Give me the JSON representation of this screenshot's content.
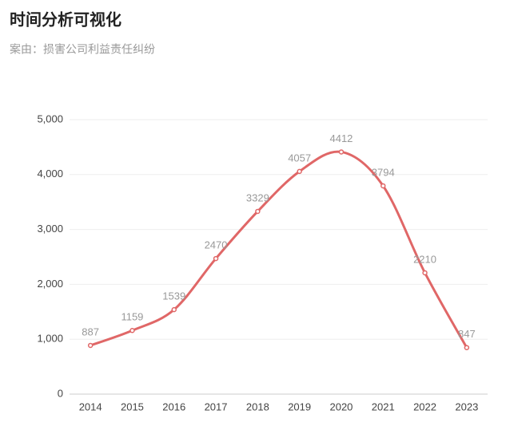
{
  "chart_data": {
    "type": "line",
    "title": "时间分析可视化",
    "subtitle": "案由：损害公司利益责任纠纷",
    "categories": [
      "2014",
      "2015",
      "2016",
      "2017",
      "2018",
      "2019",
      "2020",
      "2021",
      "2022",
      "2023"
    ],
    "values": [
      887,
      1159,
      1539,
      2470,
      3329,
      4057,
      4412,
      3794,
      2210,
      847
    ],
    "color": "#e06767",
    "ylim": [
      0,
      5000
    ],
    "yticks": [
      0,
      {
        "value": 1000,
        "label": "1,000"
      },
      {
        "value": 2000,
        "label": "2,000"
      },
      {
        "value": 3000,
        "label": "3,000"
      },
      {
        "value": 4000,
        "label": "4,000"
      },
      {
        "value": 5000,
        "label": "5,000"
      }
    ],
    "grid": true
  }
}
